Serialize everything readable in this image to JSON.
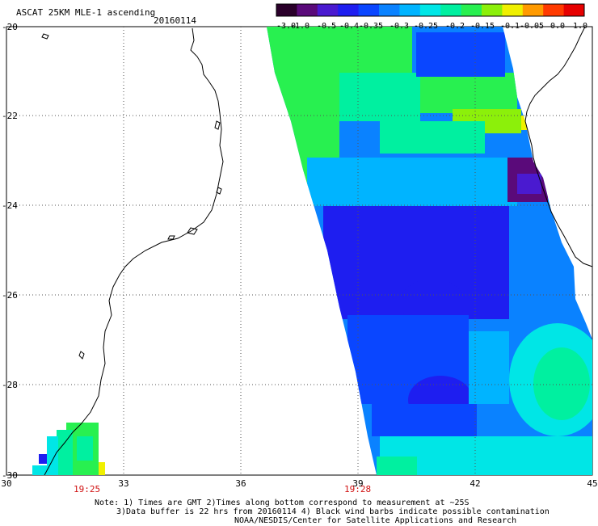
{
  "header": {
    "title": "ASCAT 25KM MLE-1 ascending",
    "date": "20160114"
  },
  "colorbar": {
    "labels": [
      "-3.0",
      "-1.0",
      "-0.5",
      "-0.4",
      "-0.35",
      "-0.3",
      "-0.25",
      "-0.2",
      "-0.15",
      "-0.1",
      "-0.05",
      "0.0",
      "1.0"
    ],
    "colors": [
      "#2a002a",
      "#5a0a7a",
      "#4a1ad0",
      "#1e1ef0",
      "#0a46ff",
      "#0a82ff",
      "#00b4ff",
      "#00e6e6",
      "#00f0a0",
      "#28f050",
      "#8cf00a",
      "#f0f000",
      "#ff9a00",
      "#ff3a00",
      "#e60000"
    ]
  },
  "axes": {
    "lat_labels": [
      "-20",
      "-22",
      "-24",
      "-26",
      "-28",
      "-30"
    ],
    "lon_labels": [
      "30",
      "33",
      "36",
      "39",
      "42",
      "45"
    ]
  },
  "pass_times": [
    "19:25",
    "19:28"
  ],
  "notes": {
    "line1": "Note: 1) Times are GMT 2)Times along bottom correspond to measurement at ~25S",
    "line2": "3)Data buffer is 22 hrs from 20160114 4) Black wind barbs indicate possible contamination",
    "line3": "NOAA/NESDIS/Center for Satellite Applications and Research"
  },
  "colors": {
    "grid": "#555555",
    "coast": "#000000",
    "time_label": "#d01010"
  }
}
